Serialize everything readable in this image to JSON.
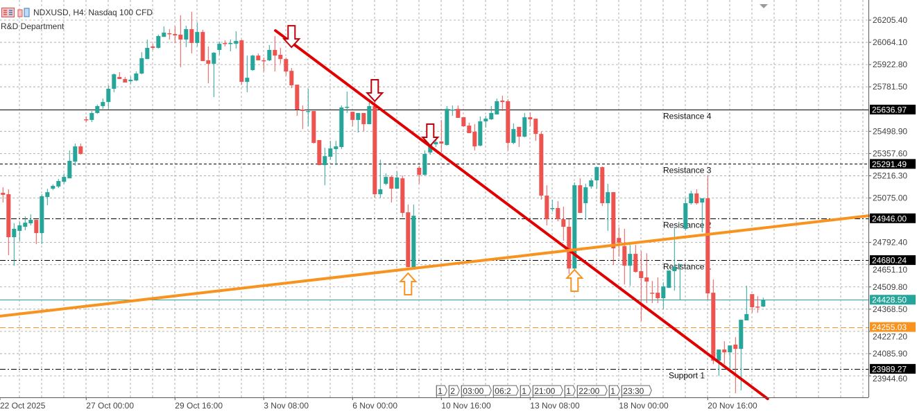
{
  "header": {
    "symbol_title": "NDXUSD, H4:  Nasdaq 100 CFD",
    "indicator_label": "R&D Department",
    "icons": [
      "trade-panel-icon",
      "chart-bars-icon"
    ]
  },
  "colors": {
    "bull": "#26a69a",
    "bear": "#ef5350",
    "trendline_down": "#e00000",
    "trendline_up": "#f7931e",
    "bid_line": "#26a69a",
    "level_dashed_orange": "#f7931e",
    "grid": "#a0a0a0"
  },
  "chart_data": {
    "type": "candlestick",
    "timeframe": "H4",
    "ylim": [
      23830,
      26280
    ],
    "grid": true,
    "y_ticks": [
      "26205.40",
      "26064.10",
      "25922.80",
      "25781.50",
      "25498.90",
      "25357.60",
      "25216.30",
      "25075.00",
      "24792.40",
      "24651.10",
      "24509.80",
      "24368.50",
      "24227.20",
      "24085.90",
      "23944.60"
    ],
    "x_ticks": [
      {
        "label": "22 Oct 2025",
        "bar": 0
      },
      {
        "label": "27 Oct 00:00",
        "bar": 16
      },
      {
        "label": "29 Oct 16:00",
        "bar": 32
      },
      {
        "label": "3 Nov 08:00",
        "bar": 48
      },
      {
        "label": "6 Nov 00:00",
        "bar": 64
      },
      {
        "label": "10 Nov 16:00",
        "bar": 80
      },
      {
        "label": "13 Nov 08:00",
        "bar": 96
      },
      {
        "label": "18 Nov 00:00",
        "bar": 112
      },
      {
        "label": "20 Nov 16:00",
        "bar": 128
      }
    ],
    "candles_ohlc": [
      [
        25108,
        25143,
        25046,
        25095
      ],
      [
        25099,
        25130,
        24711,
        24826
      ],
      [
        24826,
        24914,
        24645,
        24879
      ],
      [
        24866,
        24923,
        24799,
        24901
      ],
      [
        24892,
        24958,
        24870,
        24918
      ],
      [
        24914,
        24971,
        24901,
        24936
      ],
      [
        24936,
        24936,
        24782,
        24852
      ],
      [
        24852,
        25099,
        24782,
        25086
      ],
      [
        25081,
        25134,
        25029,
        25112
      ],
      [
        25134,
        25161,
        25125,
        25152
      ],
      [
        25148,
        25196,
        25139,
        25183
      ],
      [
        25178,
        25231,
        25165,
        25209
      ],
      [
        25200,
        25377,
        25200,
        25311
      ],
      [
        25306,
        25421,
        25280,
        25403
      ],
      [
        25403,
        25421,
        25350,
        25355
      ],
      [
        25575,
        25593,
        25557,
        25573
      ],
      [
        25571,
        25628,
        25557,
        25615
      ],
      [
        25615,
        25668,
        25610,
        25659
      ],
      [
        25659,
        25707,
        25641,
        25685
      ],
      [
        25685,
        25791,
        25641,
        25769
      ],
      [
        25769,
        25866,
        25747,
        25861
      ],
      [
        25844,
        25875,
        25831,
        25831
      ],
      [
        25831,
        25844,
        25809,
        25809
      ],
      [
        25817,
        25848,
        25800,
        25826
      ],
      [
        25822,
        25879,
        25817,
        25866
      ],
      [
        25866,
        26002,
        25861,
        25963
      ],
      [
        25958,
        26082,
        25958,
        26029
      ],
      [
        26038,
        26055,
        26016,
        26029
      ],
      [
        26029,
        26113,
        26025,
        26104
      ],
      [
        26099,
        26166,
        26099,
        26126
      ],
      [
        26122,
        26148,
        26082,
        26117
      ],
      [
        26117,
        26166,
        26060,
        26108
      ],
      [
        26113,
        26236,
        25906,
        26082
      ],
      [
        26082,
        26170,
        26033,
        26148
      ],
      [
        26148,
        26258,
        25994,
        26060
      ],
      [
        26060,
        26188,
        26038,
        26130
      ],
      [
        26130,
        26144,
        25945,
        25945
      ],
      [
        25950,
        26038,
        25804,
        25928
      ],
      [
        25928,
        26002,
        25716,
        25998
      ],
      [
        26016,
        26069,
        25985,
        26055
      ],
      [
        26060,
        26077,
        26038,
        26055
      ],
      [
        26055,
        26082,
        26007,
        26060
      ],
      [
        26055,
        26135,
        26025,
        26073
      ],
      [
        26077,
        26082,
        25795,
        25813
      ],
      [
        25813,
        25980,
        25747,
        25839
      ],
      [
        25888,
        25985,
        25883,
        25980
      ],
      [
        25980,
        25994,
        25950,
        25950
      ],
      [
        25950,
        25967,
        25879,
        25948
      ],
      [
        25950,
        26047,
        25945,
        26016
      ],
      [
        26016,
        26104,
        25879,
        25980
      ],
      [
        25985,
        26029,
        25928,
        25958
      ],
      [
        25958,
        25967,
        25853,
        25879
      ],
      [
        25883,
        25901,
        25773,
        25791
      ],
      [
        25795,
        25795,
        25597,
        25637
      ],
      [
        25637,
        25663,
        25513,
        25628
      ],
      [
        25623,
        25769,
        25531,
        25628
      ],
      [
        25628,
        25628,
        25421,
        25425
      ],
      [
        25443,
        25443,
        25284,
        25284
      ],
      [
        25284,
        25394,
        25156,
        25341
      ],
      [
        25337,
        25438,
        25319,
        25390
      ],
      [
        25386,
        25438,
        25284,
        25403
      ],
      [
        25399,
        25663,
        25386,
        25650
      ],
      [
        25650,
        25751,
        25615,
        25654
      ],
      [
        25623,
        25623,
        25531,
        25571
      ],
      [
        25571,
        25615,
        25491,
        25615
      ],
      [
        25615,
        25615,
        25500,
        25544
      ],
      [
        25544,
        25681,
        25544,
        25659
      ],
      [
        25659,
        25694,
        25077,
        25099
      ],
      [
        25099,
        25319,
        25077,
        25130
      ],
      [
        25165,
        25231,
        25156,
        25209
      ],
      [
        25209,
        25218,
        25046,
        25134
      ],
      [
        25134,
        25245,
        25134,
        25205
      ],
      [
        25200,
        25218,
        24954,
        24980
      ],
      [
        24984,
        25033,
        24636,
        24636
      ],
      [
        24636,
        25033,
        24627,
        24962
      ],
      [
        25267,
        25280,
        25165,
        25222
      ],
      [
        25222,
        25377,
        25218,
        25355
      ],
      [
        25364,
        25430,
        25350,
        25421
      ],
      [
        25416,
        25460,
        25399,
        25430
      ],
      [
        25434,
        25571,
        25364,
        25421
      ],
      [
        25412,
        25659,
        25408,
        25641
      ],
      [
        25632,
        25663,
        25597,
        25637
      ],
      [
        25641,
        25663,
        25584,
        25584
      ],
      [
        25588,
        25588,
        25527,
        25531
      ],
      [
        25535,
        25553,
        25487,
        25487
      ],
      [
        25496,
        25544,
        25377,
        25403
      ],
      [
        25408,
        25593,
        25403,
        25562
      ],
      [
        25562,
        25597,
        25522,
        25579
      ],
      [
        25575,
        25659,
        25571,
        25615
      ],
      [
        25606,
        25707,
        25606,
        25690
      ],
      [
        25694,
        25725,
        25628,
        25685
      ],
      [
        25690,
        25703,
        25377,
        25425
      ],
      [
        25425,
        25549,
        25416,
        25513
      ],
      [
        25527,
        25527,
        25399,
        25465
      ],
      [
        25465,
        25615,
        25460,
        25588
      ],
      [
        25588,
        25619,
        25531,
        25575
      ],
      [
        25579,
        25579,
        25438,
        25482
      ],
      [
        25482,
        25496,
        25064,
        25090
      ],
      [
        25090,
        25156,
        24901,
        24940
      ],
      [
        25006,
        25064,
        24989,
        25011
      ],
      [
        25011,
        25055,
        24927,
        24940
      ],
      [
        24940,
        25020,
        24804,
        24892
      ],
      [
        24892,
        24940,
        24592,
        24627
      ],
      [
        24627,
        25174,
        24535,
        25156
      ],
      [
        25156,
        25200,
        24980,
        24980
      ],
      [
        25042,
        25165,
        24936,
        25143
      ],
      [
        25148,
        25200,
        25134,
        25187
      ],
      [
        25187,
        25275,
        25134,
        25271
      ],
      [
        25271,
        25275,
        25024,
        25042
      ],
      [
        25042,
        25165,
        24866,
        25112
      ],
      [
        25112,
        25112,
        24650,
        24755
      ],
      [
        24821,
        24888,
        24702,
        24791
      ],
      [
        24769,
        24879,
        24526,
        24645
      ],
      [
        24645,
        24777,
        24517,
        24720
      ],
      [
        24720,
        24777,
        24601,
        24605
      ],
      [
        24610,
        24738,
        24293,
        24566
      ],
      [
        24570,
        24724,
        24407,
        24544
      ],
      [
        24473,
        24548,
        24407,
        24471
      ],
      [
        24473,
        24570,
        24407,
        24438
      ],
      [
        24438,
        24539,
        24372,
        24513
      ],
      [
        24504,
        24614,
        24504,
        24614
      ],
      [
        24610,
        24892,
        24486,
        24636
      ],
      [
        24650,
        24654,
        24429,
        24654
      ],
      [
        24879,
        25077,
        24870,
        25042
      ],
      [
        25042,
        25121,
        25033,
        25104
      ],
      [
        25104,
        25130,
        25033,
        25042
      ],
      [
        25046,
        25073,
        24857,
        25073
      ],
      [
        25073,
        25218,
        24429,
        24469
      ],
      [
        24473,
        24557,
        24019,
        24041
      ],
      [
        24041,
        24112,
        23944,
        24112
      ],
      [
        24112,
        24165,
        24019,
        24094
      ],
      [
        24094,
        24138,
        23966,
        24138
      ],
      [
        24143,
        24191,
        23834,
        24116
      ],
      [
        24116,
        24301,
        23852,
        24301
      ],
      [
        24297,
        24517,
        24297,
        24337
      ],
      [
        24464,
        24464,
        24345,
        24381
      ],
      [
        24385,
        24451,
        24345,
        24383
      ],
      [
        24385,
        24442,
        24381,
        24428.5
      ]
    ],
    "levels": [
      {
        "name": "Resistance 4",
        "price": 25636.97,
        "price_label": "25636.97",
        "style": "solid",
        "tag": "dark"
      },
      {
        "name": "Resistance 3",
        "price": 25291.49,
        "price_label": "25291.49",
        "style": "dashed",
        "tag": "dark"
      },
      {
        "name": "Resistance 2",
        "price": 24946.0,
        "price_label": "24946.00",
        "style": "dashdot",
        "tag": "dark"
      },
      {
        "name": "Resistance 1",
        "price": 24680.24,
        "price_label": "24680.24",
        "style": "dashdot",
        "tag": "dark"
      },
      {
        "name": "Support 1",
        "price": 23989.27,
        "price_label": "23989.27",
        "style": "dashdot",
        "tag": "dark"
      },
      {
        "name": "",
        "price": 24255.03,
        "price_label": "24255.03",
        "style": "orange-dashed",
        "tag": "orange"
      },
      {
        "name": "",
        "price": 24428.5,
        "price_label": "24428.50",
        "style": "bid",
        "tag": "teal"
      }
    ],
    "trendlines": [
      {
        "color": "down",
        "from": {
          "bar": 50.1,
          "price": 26139
        },
        "to": {
          "bar": 138.8,
          "price": 23799
        }
      },
      {
        "color": "up",
        "from": {
          "bar": 0.46,
          "price": 24324
        },
        "to": {
          "bar": 157,
          "price": 24962
        }
      }
    ],
    "arrows": [
      {
        "dir": "down",
        "bar": 53,
        "price": 26033
      },
      {
        "dir": "down",
        "bar": 68,
        "price": 25690
      },
      {
        "dir": "down",
        "bar": 78,
        "price": 25408
      },
      {
        "dir": "up",
        "bar": 74,
        "price": 24597
      },
      {
        "dir": "up",
        "bar": 104,
        "price": 24619
      }
    ],
    "event_tags": [
      {
        "text": "1",
        "bar": 79
      },
      {
        "text": "2",
        "bar": 80
      },
      {
        "text": "03:00",
        "bar": 81
      },
      {
        "text": "06:2",
        "bar": 88.5
      },
      {
        "text": "1",
        "bar": 92
      },
      {
        "text": "21:00",
        "bar": 93
      },
      {
        "text": "1",
        "bar": 98
      },
      {
        "text": "22:00",
        "bar": 99
      },
      {
        "text": "1",
        "bar": 104
      },
      {
        "text": "23:30",
        "bar": 105
      }
    ]
  }
}
